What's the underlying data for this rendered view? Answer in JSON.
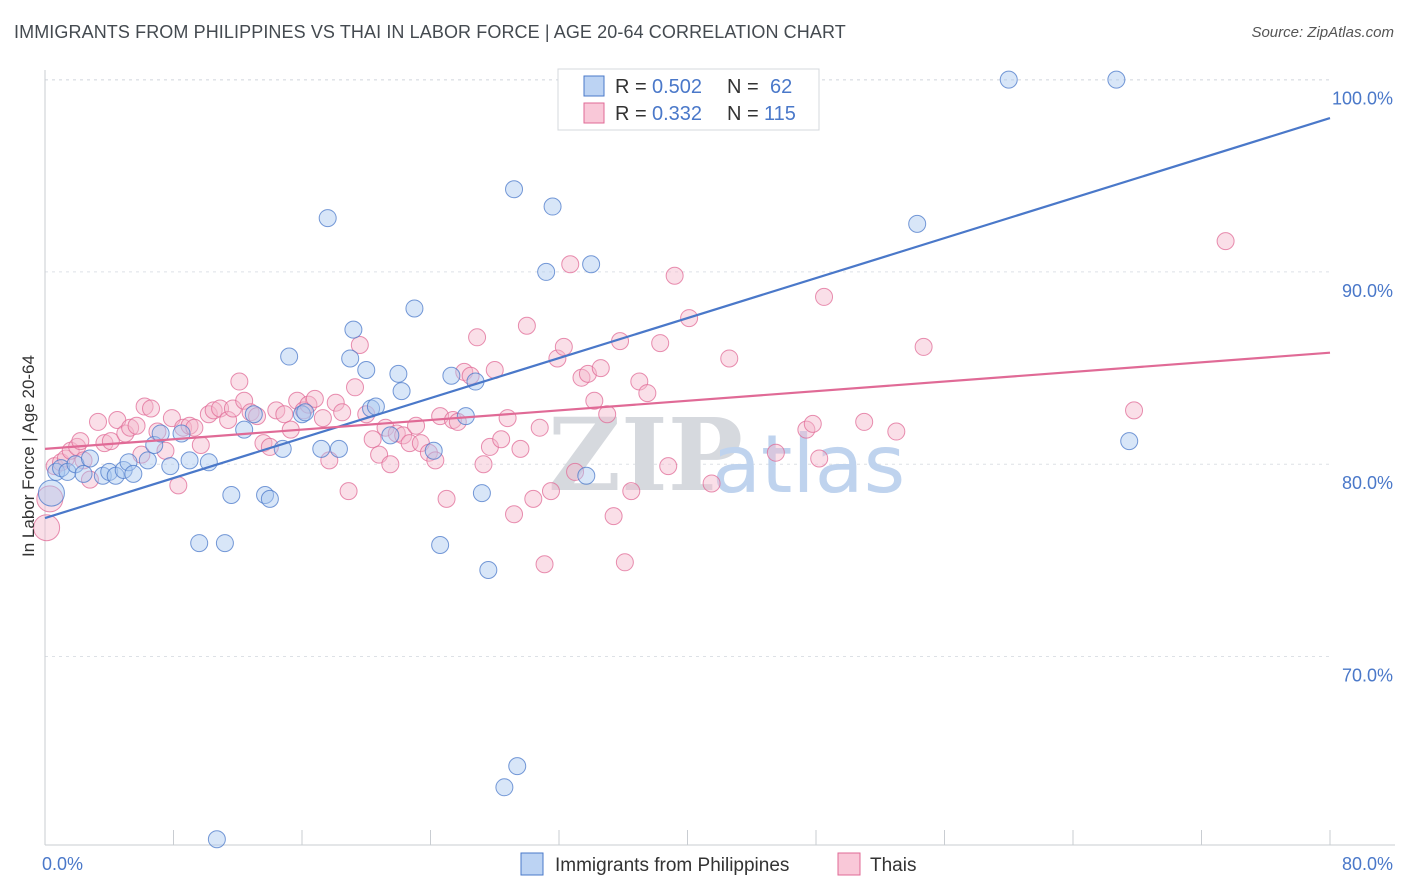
{
  "title": "IMMIGRANTS FROM PHILIPPINES VS THAI IN LABOR FORCE | AGE 20-64 CORRELATION CHART",
  "source": "Source: ZipAtlas.com",
  "watermark": {
    "zip": "ZIP",
    "atlas": "atlas"
  },
  "colors": {
    "blue": "#4a78c9",
    "blue_fill": "#a9c7f0",
    "pink": "#e06a96",
    "pink_fill": "#f5b7cc",
    "grid": "#dde1e6"
  },
  "legend": {
    "rows": [
      {
        "r_label": "R =",
        "r_value": "0.502",
        "n_label": "N =",
        "n_value": "62"
      },
      {
        "r_label": "R =",
        "r_value": "0.332",
        "n_label": "N =",
        "n_value": "115"
      }
    ]
  },
  "chart_data": {
    "type": "scatter",
    "title": "IMMIGRANTS FROM PHILIPPINES VS THAI IN LABOR FORCE | AGE 20-64 CORRELATION CHART",
    "xlabel": "",
    "ylabel": "In Labor Force | Age 20-64",
    "xlim": [
      0,
      80
    ],
    "ylim": [
      60.2,
      100.5
    ],
    "x_tick_labels": [
      "0.0%",
      "80.0%"
    ],
    "y_ticks": [
      70,
      80,
      90,
      100
    ],
    "y_tick_labels": [
      "70.0%",
      "80.0%",
      "90.0%",
      "100.0%"
    ],
    "series": [
      {
        "name": "Immigrants from Philippines",
        "color": "#4a78c9",
        "trend": {
          "x": [
            0,
            80
          ],
          "y": [
            77.2,
            98.0
          ]
        },
        "points": [
          [
            0.4,
            78.5
          ],
          [
            0.7,
            79.6
          ],
          [
            1.0,
            79.8
          ],
          [
            1.4,
            79.6
          ],
          [
            1.9,
            80.0
          ],
          [
            2.4,
            79.5
          ],
          [
            2.8,
            80.3
          ],
          [
            3.6,
            79.4
          ],
          [
            4.0,
            79.6
          ],
          [
            4.4,
            79.4
          ],
          [
            4.9,
            79.7
          ],
          [
            5.2,
            80.1
          ],
          [
            5.5,
            79.5
          ],
          [
            6.4,
            80.2
          ],
          [
            6.8,
            81.0
          ],
          [
            7.2,
            81.6
          ],
          [
            7.8,
            79.9
          ],
          [
            8.5,
            81.6
          ],
          [
            9.0,
            80.2
          ],
          [
            9.6,
            75.9
          ],
          [
            10.2,
            80.1
          ],
          [
            10.7,
            60.5
          ],
          [
            11.2,
            75.9
          ],
          [
            11.6,
            78.4
          ],
          [
            12.4,
            81.8
          ],
          [
            13.0,
            82.6
          ],
          [
            13.7,
            78.4
          ],
          [
            14.0,
            78.2
          ],
          [
            14.8,
            80.8
          ],
          [
            15.2,
            85.6
          ],
          [
            16.0,
            82.6
          ],
          [
            16.2,
            82.7
          ],
          [
            17.2,
            80.8
          ],
          [
            17.6,
            92.8
          ],
          [
            18.3,
            80.8
          ],
          [
            19.0,
            85.5
          ],
          [
            19.2,
            87.0
          ],
          [
            20.0,
            84.9
          ],
          [
            20.3,
            82.9
          ],
          [
            20.6,
            83.0
          ],
          [
            21.5,
            81.5
          ],
          [
            22.0,
            84.7
          ],
          [
            22.2,
            83.8
          ],
          [
            23.0,
            88.1
          ],
          [
            24.2,
            80.7
          ],
          [
            24.6,
            75.8
          ],
          [
            25.3,
            84.6
          ],
          [
            26.2,
            82.5
          ],
          [
            26.8,
            84.3
          ],
          [
            27.2,
            78.5
          ],
          [
            27.6,
            74.5
          ],
          [
            28.6,
            63.2
          ],
          [
            29.2,
            94.3
          ],
          [
            29.4,
            64.3
          ],
          [
            31.2,
            90.0
          ],
          [
            31.6,
            93.4
          ],
          [
            33.7,
            79.4
          ],
          [
            34.0,
            90.4
          ],
          [
            54.3,
            92.5
          ],
          [
            60.0,
            100.0
          ],
          [
            66.7,
            100.0
          ],
          [
            67.5,
            81.2
          ]
        ]
      },
      {
        "name": "Thais",
        "color": "#e06a96",
        "trend": {
          "x": [
            0,
            80
          ],
          "y": [
            80.8,
            85.8
          ]
        },
        "points": [
          [
            0.1,
            76.7
          ],
          [
            0.3,
            78.2
          ],
          [
            0.6,
            79.9
          ],
          [
            1.0,
            80.1
          ],
          [
            1.3,
            80.3
          ],
          [
            1.6,
            80.7
          ],
          [
            2.0,
            80.9
          ],
          [
            2.4,
            80.2
          ],
          [
            2.8,
            79.2
          ],
          [
            3.3,
            82.2
          ],
          [
            3.7,
            81.1
          ],
          [
            4.1,
            81.2
          ],
          [
            4.5,
            82.3
          ],
          [
            5.0,
            81.6
          ],
          [
            5.3,
            81.9
          ],
          [
            5.7,
            82.0
          ],
          [
            6.2,
            83.0
          ],
          [
            6.6,
            82.9
          ],
          [
            7.0,
            81.7
          ],
          [
            7.5,
            80.7
          ],
          [
            7.9,
            82.4
          ],
          [
            8.3,
            78.9
          ],
          [
            8.6,
            81.9
          ],
          [
            9.0,
            82.0
          ],
          [
            9.3,
            81.9
          ],
          [
            9.7,
            81.0
          ],
          [
            10.2,
            82.6
          ],
          [
            10.5,
            82.8
          ],
          [
            10.9,
            82.9
          ],
          [
            11.4,
            82.3
          ],
          [
            11.7,
            82.9
          ],
          [
            12.1,
            84.3
          ],
          [
            12.4,
            83.3
          ],
          [
            12.8,
            82.7
          ],
          [
            13.2,
            82.5
          ],
          [
            13.6,
            81.1
          ],
          [
            14.0,
            80.9
          ],
          [
            14.4,
            82.8
          ],
          [
            14.9,
            82.6
          ],
          [
            15.3,
            81.8
          ],
          [
            15.7,
            83.3
          ],
          [
            16.1,
            82.8
          ],
          [
            16.4,
            83.1
          ],
          [
            16.8,
            83.4
          ],
          [
            17.3,
            82.4
          ],
          [
            17.7,
            80.2
          ],
          [
            18.1,
            83.2
          ],
          [
            18.5,
            82.7
          ],
          [
            18.9,
            78.6
          ],
          [
            19.3,
            84.0
          ],
          [
            19.6,
            86.2
          ],
          [
            20.0,
            82.6
          ],
          [
            20.4,
            81.3
          ],
          [
            20.8,
            80.5
          ],
          [
            21.2,
            81.9
          ],
          [
            21.5,
            80.0
          ],
          [
            21.9,
            81.6
          ],
          [
            22.3,
            81.5
          ],
          [
            22.7,
            81.1
          ],
          [
            23.1,
            82.0
          ],
          [
            23.4,
            81.1
          ],
          [
            23.9,
            80.6
          ],
          [
            24.3,
            80.2
          ],
          [
            24.6,
            82.5
          ],
          [
            25.0,
            78.2
          ],
          [
            25.4,
            82.3
          ],
          [
            25.7,
            82.2
          ],
          [
            26.1,
            84.8
          ],
          [
            26.5,
            84.6
          ],
          [
            26.9,
            86.6
          ],
          [
            27.3,
            80.0
          ],
          [
            27.7,
            80.9
          ],
          [
            28.0,
            84.9
          ],
          [
            28.4,
            81.3
          ],
          [
            28.8,
            82.4
          ],
          [
            29.2,
            77.4
          ],
          [
            29.6,
            80.8
          ],
          [
            30.0,
            87.2
          ],
          [
            30.4,
            78.2
          ],
          [
            30.8,
            81.9
          ],
          [
            31.1,
            74.8
          ],
          [
            31.5,
            78.6
          ],
          [
            31.9,
            85.5
          ],
          [
            32.3,
            86.1
          ],
          [
            32.7,
            90.4
          ],
          [
            33.0,
            79.6
          ],
          [
            33.4,
            84.5
          ],
          [
            33.8,
            84.7
          ],
          [
            34.2,
            83.3
          ],
          [
            34.6,
            85.0
          ],
          [
            35.0,
            82.6
          ],
          [
            35.4,
            77.3
          ],
          [
            35.8,
            86.4
          ],
          [
            36.1,
            74.9
          ],
          [
            36.5,
            78.6
          ],
          [
            37.0,
            84.3
          ],
          [
            37.5,
            83.7
          ],
          [
            38.3,
            86.3
          ],
          [
            38.8,
            79.9
          ],
          [
            39.2,
            89.8
          ],
          [
            40.1,
            87.6
          ],
          [
            41.5,
            79.0
          ],
          [
            42.6,
            85.5
          ],
          [
            45.5,
            80.6
          ],
          [
            47.4,
            81.8
          ],
          [
            47.8,
            82.1
          ],
          [
            48.2,
            80.3
          ],
          [
            48.5,
            88.7
          ],
          [
            51.0,
            82.2
          ],
          [
            53.0,
            81.7
          ],
          [
            54.7,
            86.1
          ],
          [
            67.8,
            82.8
          ],
          [
            73.5,
            91.6
          ],
          [
            2.2,
            81.2
          ],
          [
            6.0,
            80.5
          ]
        ]
      }
    ],
    "legend_location": "top-center",
    "bottom_legend": [
      "Immigrants from Philippines",
      "Thais"
    ]
  }
}
